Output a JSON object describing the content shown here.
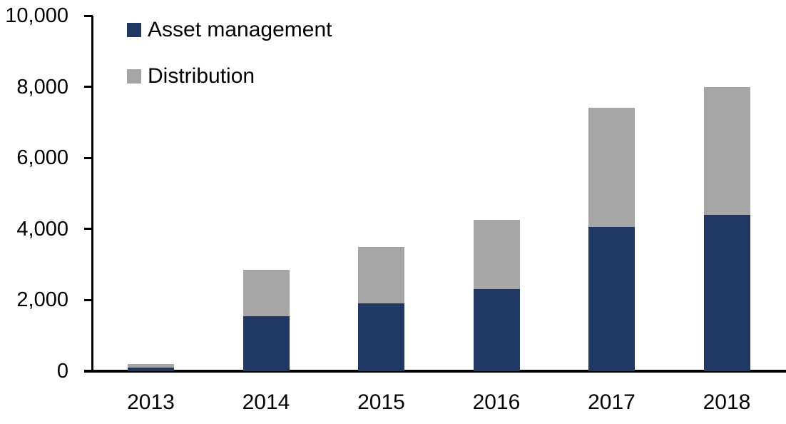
{
  "chart_data": {
    "type": "bar",
    "stacked": true,
    "title": "",
    "categories": [
      "2013",
      "2014",
      "2015",
      "2016",
      "2017",
      "2018"
    ],
    "series": [
      {
        "name": "Asset management",
        "color": "#1f3864",
        "values": [
          100,
          1550,
          1900,
          2300,
          4050,
          4400
        ]
      },
      {
        "name": "Distribution",
        "color": "#a6a6a6",
        "values": [
          100,
          1300,
          1600,
          1950,
          3350,
          3600
        ]
      }
    ],
    "totals": [
      200,
      2850,
      3500,
      4250,
      7400,
      8000
    ],
    "y_axis": {
      "min": 0,
      "max": 10000,
      "tick_step": 2000,
      "tick_values": [
        0,
        2000,
        4000,
        6000,
        8000,
        10000
      ],
      "tick_labels": [
        "0",
        "2,000",
        "4,000",
        "6,000",
        "8,000",
        "10,000"
      ]
    },
    "x_axis": {
      "labels": [
        "2013",
        "2014",
        "2015",
        "2016",
        "2017",
        "2018"
      ]
    },
    "legend": {
      "position": "top-left",
      "entries": [
        "Asset management",
        "Distribution"
      ]
    },
    "grid": false,
    "axis_color": "#000000",
    "background_color": "#ffffff"
  }
}
